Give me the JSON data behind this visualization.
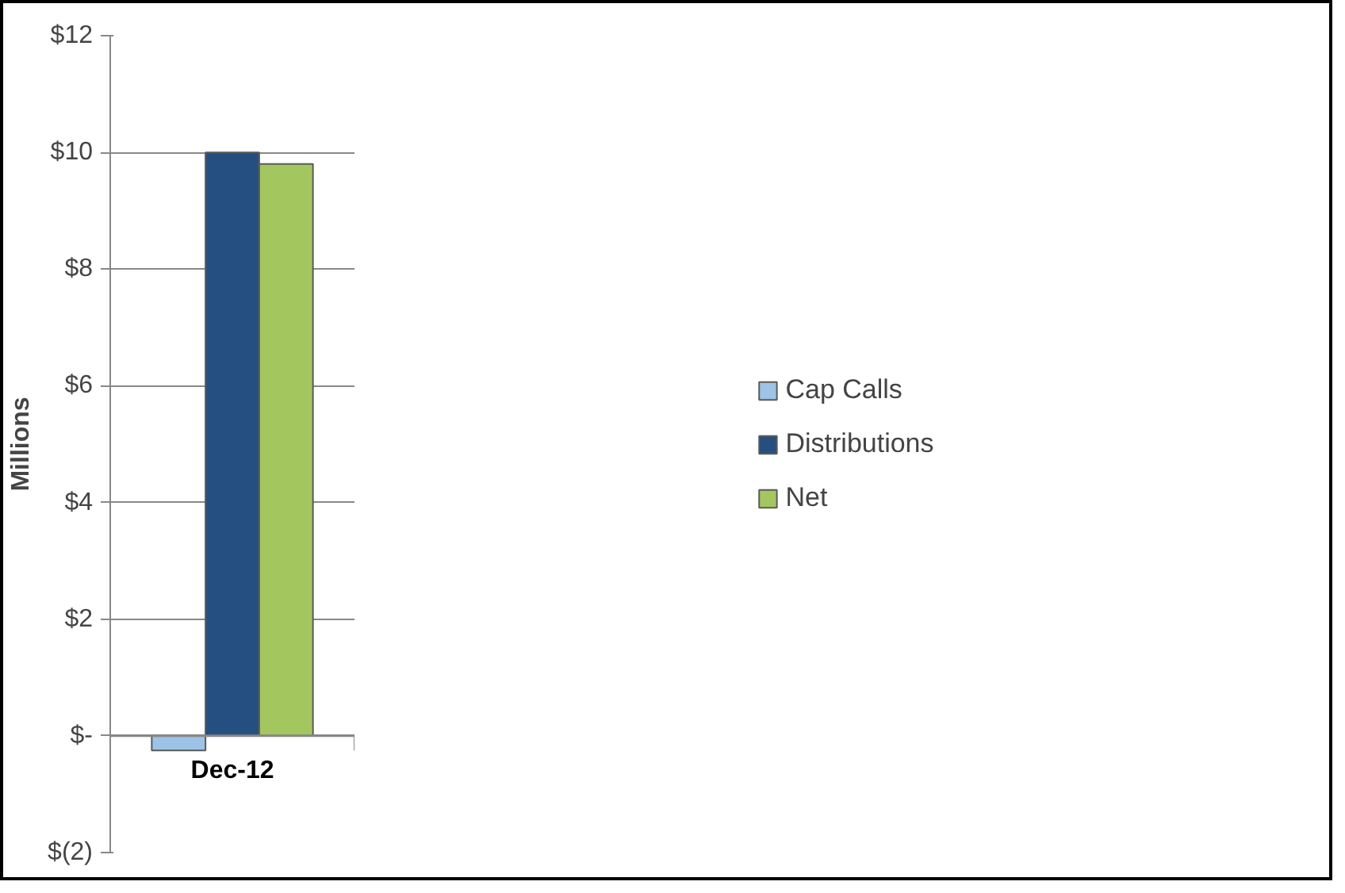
{
  "chart_data": {
    "type": "bar",
    "ylabel": "Millions",
    "categories": [
      "Dec-12"
    ],
    "series": [
      {
        "name": "Cap Calls",
        "color": "#9dc3e6",
        "values": [
          -0.25
        ]
      },
      {
        "name": "Distributions",
        "color": "#254f80",
        "values": [
          10.0
        ]
      },
      {
        "name": "Net",
        "color": "#a4c65f",
        "values": [
          9.8
        ]
      }
    ],
    "ylim": [
      -2,
      12
    ],
    "yticks": [
      {
        "value": -2,
        "label": "$(2)"
      },
      {
        "value": 0,
        "label": "$-"
      },
      {
        "value": 2,
        "label": "$2"
      },
      {
        "value": 4,
        "label": "$4"
      },
      {
        "value": 6,
        "label": "$6"
      },
      {
        "value": 8,
        "label": "$8"
      },
      {
        "value": 10,
        "label": "$10"
      },
      {
        "value": 12,
        "label": "$12"
      }
    ],
    "grid": "y",
    "legend": "right"
  }
}
